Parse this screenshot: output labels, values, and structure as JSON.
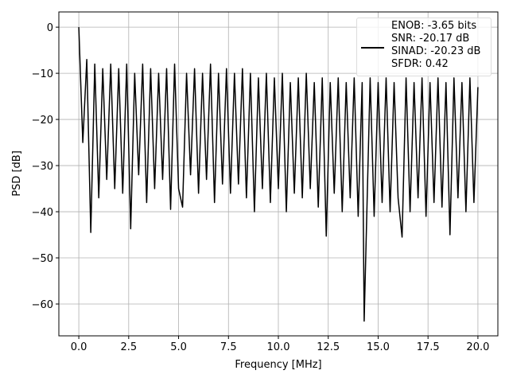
{
  "chart_data": {
    "type": "line",
    "xlabel": "Frequency [MHz]",
    "ylabel": "PSD [dB]",
    "xlim": [
      -1,
      21
    ],
    "ylim": [
      -66.9,
      3.3
    ],
    "xticks": [
      {
        "value": 0,
        "label": "0.0"
      },
      {
        "value": 2.5,
        "label": "2.5"
      },
      {
        "value": 5,
        "label": "5.0"
      },
      {
        "value": 7.5,
        "label": "7.5"
      },
      {
        "value": 10,
        "label": "10.0"
      },
      {
        "value": 12.5,
        "label": "12.5"
      },
      {
        "value": 15,
        "label": "15.0"
      },
      {
        "value": 17.5,
        "label": "17.5"
      },
      {
        "value": 20,
        "label": "20.0"
      }
    ],
    "yticks": [
      {
        "value": -60,
        "label": "−60"
      },
      {
        "value": -50,
        "label": "−50"
      },
      {
        "value": -40,
        "label": "−40"
      },
      {
        "value": -30,
        "label": "−30"
      },
      {
        "value": -20,
        "label": "−20"
      },
      {
        "value": -10,
        "label": "−10"
      },
      0
    ],
    "grid": true,
    "legend": "upper right",
    "x": [
      0,
      0.2,
      0.4,
      0.6,
      0.8,
      1.0,
      1.2,
      1.4,
      1.6,
      1.8,
      2.0,
      2.2,
      2.4,
      2.6,
      2.8,
      3.0,
      3.2,
      3.4,
      3.6,
      3.8,
      4.0,
      4.2,
      4.4,
      4.6,
      4.8,
      5.0,
      5.2,
      5.4,
      5.6,
      5.8,
      6.0,
      6.2,
      6.4,
      6.6,
      6.8,
      7.0,
      7.2,
      7.4,
      7.6,
      7.8,
      8.0,
      8.2,
      8.4,
      8.6,
      8.8,
      9.0,
      9.2,
      9.4,
      9.6,
      9.8,
      10.0,
      10.2,
      10.4,
      10.6,
      10.8,
      11.0,
      11.2,
      11.4,
      11.6,
      11.8,
      12.0,
      12.2,
      12.4,
      12.6,
      12.8,
      13.0,
      13.2,
      13.4,
      13.6,
      13.8,
      14.0,
      14.2,
      14.3,
      14.6,
      14.8,
      15.0,
      15.2,
      15.4,
      15.6,
      15.8,
      16.0,
      16.2,
      16.4,
      16.6,
      16.8,
      17.0,
      17.2,
      17.4,
      17.6,
      17.8,
      18.0,
      18.2,
      18.4,
      18.6,
      18.8,
      19.0,
      19.2,
      19.4,
      19.6,
      19.8,
      20.0
    ],
    "series": [
      {
        "name": "ENOB: -3.65 bits\nSNR: -20.17 dB\nSINAD: -20.23 dB\nSFDR: 0.42",
        "color": "#000000",
        "values": [
          0,
          -25,
          -7,
          -44.5,
          -8,
          -37,
          -9,
          -33,
          -8,
          -35,
          -9,
          -36,
          -8,
          -43.7,
          -10,
          -32,
          -8,
          -38,
          -9,
          -35,
          -10,
          -33,
          -9,
          -39.5,
          -8,
          -35,
          -39,
          -10,
          -32,
          -9,
          -36,
          -10,
          -33,
          -8,
          -38,
          -10,
          -34,
          -9,
          -36,
          -10,
          -34,
          -9,
          -37,
          -10,
          -40,
          -11,
          -35,
          -10,
          -38,
          -11,
          -35,
          -10,
          -40,
          -12,
          -36,
          -11,
          -37,
          -10,
          -35,
          -12,
          -39,
          -11,
          -45.3,
          -12,
          -36,
          -11,
          -40,
          -12,
          -37,
          -11,
          -41,
          -12,
          -63.7,
          -11,
          -41,
          -12,
          -38,
          -11,
          -40,
          -12,
          -37,
          -45.5,
          -11,
          -40,
          -12,
          -37,
          -11,
          -41,
          -12,
          -38,
          -11,
          -39,
          -12,
          -45,
          -11,
          -37,
          -12,
          -40,
          -11,
          -38,
          -13
        ]
      }
    ]
  }
}
